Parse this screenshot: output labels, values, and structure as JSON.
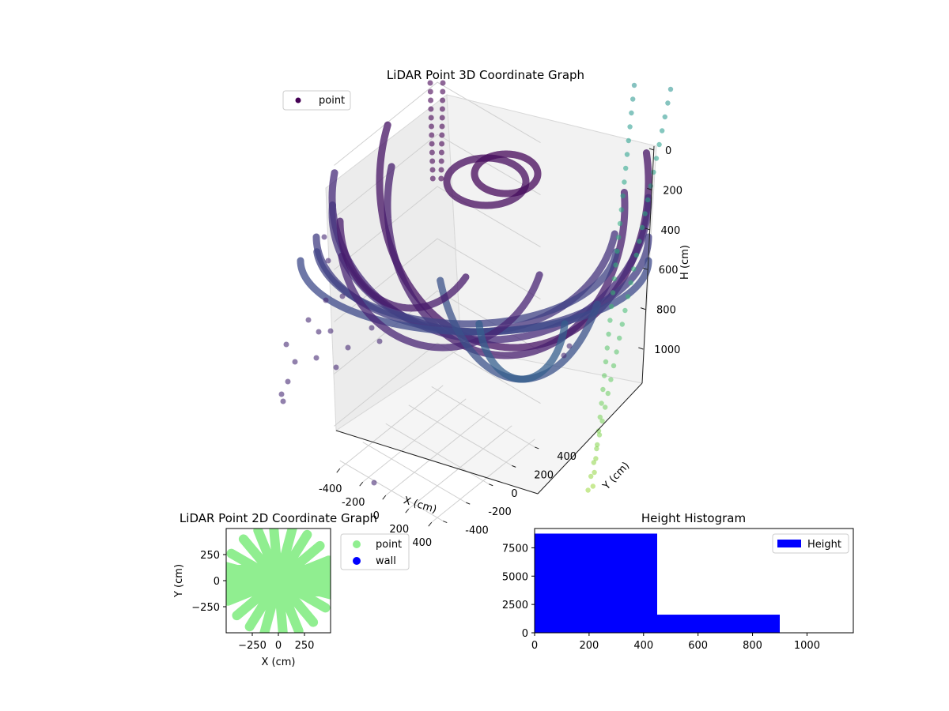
{
  "chart_data": [
    {
      "type": "scatter",
      "projection": "3d",
      "title": "LiDAR Point 3D Coordinate Graph",
      "xlabel": "X (cm)",
      "ylabel": "Y (cm)",
      "zlabel": "H (cm)",
      "xlim": [
        -450,
        450
      ],
      "ylim": [
        -450,
        450
      ],
      "zlim": [
        0,
        1150
      ],
      "z_inverted": true,
      "xticks": [
        "-400",
        "-200",
        "0",
        "200",
        "400"
      ],
      "yticks": [
        "-400",
        "-200",
        "0",
        "200",
        "400"
      ],
      "zticks": [
        "0",
        "200",
        "400",
        "600",
        "800",
        "1000"
      ],
      "grid": true,
      "legend": {
        "placement": "upper-left",
        "entries": [
          "point"
        ]
      },
      "colormap": "viridis",
      "series": [
        {
          "name": "point",
          "color": "#440154",
          "description_values": "dense ring arcs of LiDAR returns, rings centered near origin, depth increasing to ~1100"
        }
      ]
    },
    {
      "type": "scatter",
      "title": "LiDAR Point 2D Coordinate Graph",
      "xlabel": "X (cm)",
      "ylabel": "Y (cm)",
      "xlim": [
        -500,
        500
      ],
      "ylim": [
        -500,
        500
      ],
      "xticks": [
        "−250",
        "0",
        "250"
      ],
      "yticks": [
        "250",
        "0",
        "−250"
      ],
      "legend": {
        "placement": "outside-right",
        "entries": [
          "point",
          "wall"
        ]
      },
      "series": [
        {
          "name": "point",
          "color": "#90ee90"
        },
        {
          "name": "wall",
          "color": "#0000ff"
        }
      ]
    },
    {
      "type": "bar",
      "subtype": "histogram",
      "title": "Height Histogram",
      "bins": [
        [
          0,
          450
        ],
        [
          450,
          900
        ],
        [
          900,
          1150
        ]
      ],
      "values": [
        8750,
        1600,
        0
      ],
      "xlim": [
        0,
        1170
      ],
      "ylim": [
        0,
        9200
      ],
      "xticks": [
        "0",
        "200",
        "400",
        "600",
        "800",
        "1000"
      ],
      "yticks": [
        "0",
        "2500",
        "5000",
        "7500"
      ],
      "legend": {
        "placement": "top-right",
        "entries": [
          "Height"
        ]
      },
      "series": [
        {
          "name": "Height",
          "color": "#0000ff"
        }
      ]
    }
  ]
}
